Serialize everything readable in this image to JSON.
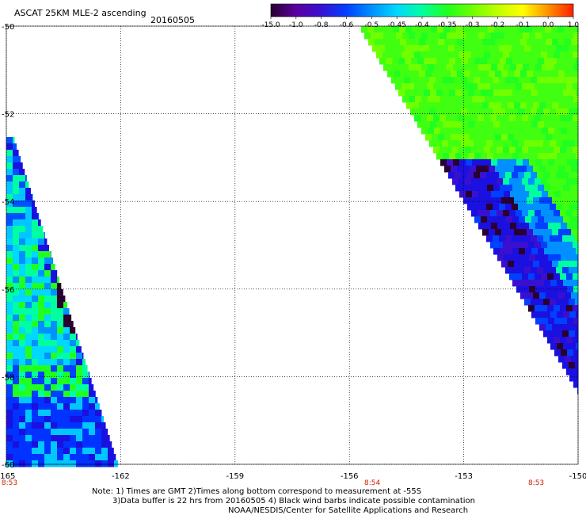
{
  "header": {
    "title": "ASCAT 25KM MLE-2 ascending",
    "date": "20160505"
  },
  "colorbar": {
    "labels": [
      "-15.0",
      "-1.0",
      "-0.8",
      "-0.6",
      "-0.5",
      "-0.45",
      "-0.4",
      "-0.35",
      "-0.3",
      "-0.2",
      "-0.1",
      "0.0",
      "1.0"
    ],
    "colors": [
      "#2a0030",
      "#5a00a0",
      "#3a10d0",
      "#0040ff",
      "#0090ff",
      "#00d8ff",
      "#00ffa0",
      "#20ff20",
      "#70ff00",
      "#c0ff00",
      "#ffff00",
      "#ff9000",
      "#ff2000"
    ]
  },
  "chart_data": {
    "type": "heatmap",
    "title": "ASCAT 25KM MLE-2 ascending",
    "subtitle": "20160505",
    "x_ticks": [
      "-165",
      "-162",
      "-159",
      "-156",
      "-153",
      "-150"
    ],
    "y_ticks": [
      "-50",
      "-52",
      "-54",
      "-56",
      "-58",
      "-60"
    ],
    "xlim": [
      -165,
      -150
    ],
    "ylim": [
      -60,
      -50
    ],
    "grid": true,
    "scale_labels": [
      "-15.0",
      "-1.0",
      "-0.8",
      "-0.6",
      "-0.5",
      "-0.45",
      "-0.4",
      "-0.35",
      "-0.3",
      "-0.2",
      "-0.1",
      "0.0",
      "1.0"
    ],
    "time_labels": [
      {
        "text": "8:53",
        "lon": -165
      },
      {
        "text": "8:54",
        "lon": -155.4
      },
      {
        "text": "8:53",
        "lon": -151.1
      }
    ],
    "swaths": [
      {
        "name": "west",
        "lon_range": [
          -165,
          -161.8
        ],
        "lat_range": [
          -60,
          -52.8
        ]
      },
      {
        "name": "east",
        "lon_range": [
          -156.2,
          -150
        ],
        "lat_range": [
          -59.2,
          -50
        ]
      }
    ]
  },
  "footer": {
    "line1": "Note: 1) Times are GMT 2)Times along bottom correspond to measurement at -55S",
    "line2": "3)Data buffer is 22 hrs from 20160505 4) Black wind barbs indicate possible contamination",
    "line3": "NOAA/NESDIS/Center for Satellite Applications and Research"
  }
}
